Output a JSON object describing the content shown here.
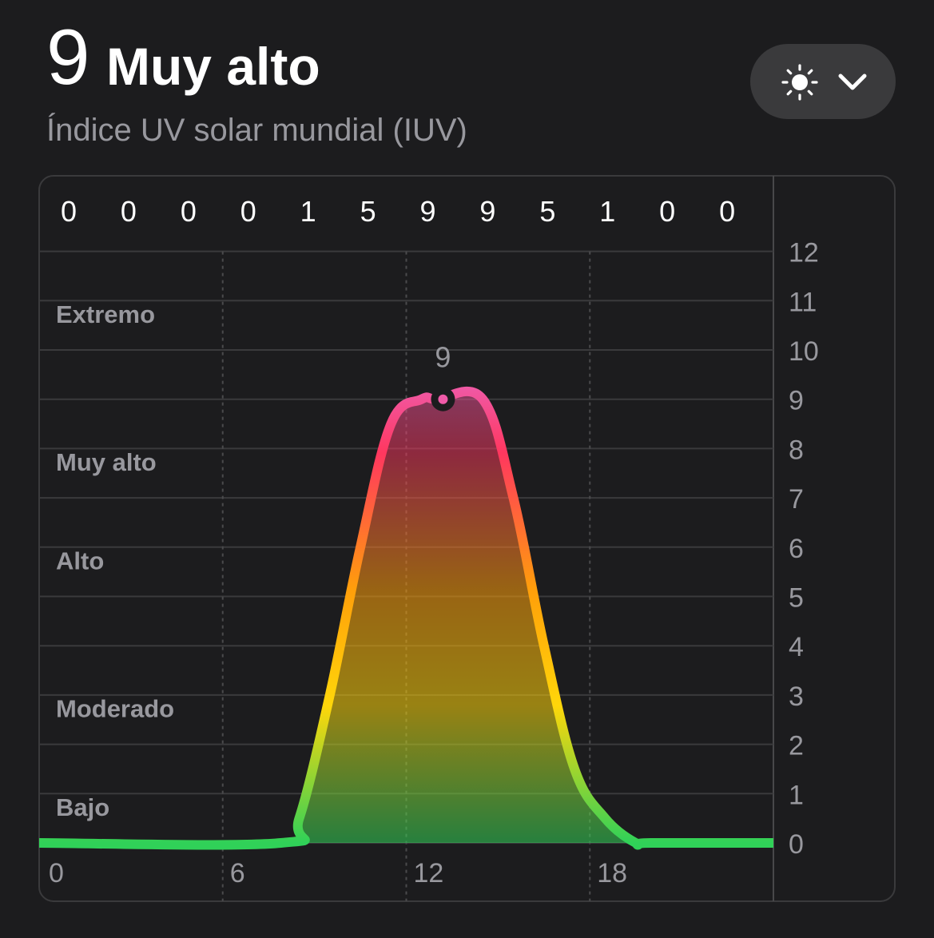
{
  "header": {
    "value": "9",
    "category": "Muy alto",
    "subtitle": "Índice UV solar mundial (IUV)"
  },
  "menu": {
    "icon": "sun-icon",
    "chevron": "chevron-down-icon"
  },
  "colors": {
    "background": "#1c1c1e",
    "low": "#30d158",
    "moderate": "#ffd60a",
    "high": "#ff9f0a",
    "very_high": "#ff375f",
    "extreme": "#ef5aa8"
  },
  "chart_data": {
    "type": "area",
    "title": "",
    "x_ticks": [
      "0",
      "6",
      "12",
      "18"
    ],
    "xlim": [
      0,
      24
    ],
    "y_ticks": [
      "0",
      "1",
      "2",
      "3",
      "4",
      "5",
      "6",
      "7",
      "8",
      "9",
      "10",
      "11",
      "12"
    ],
    "ylim": [
      0,
      12
    ],
    "hourly_top_labels": [
      "0",
      "0",
      "0",
      "0",
      "1",
      "5",
      "9",
      "9",
      "5",
      "1",
      "0",
      "0"
    ],
    "category_bands": [
      {
        "label": "Bajo",
        "from": 0,
        "to": 2
      },
      {
        "label": "Moderado",
        "from": 3,
        "to": 5
      },
      {
        "label": "Alto",
        "from": 6,
        "to": 7
      },
      {
        "label": "Muy alto",
        "from": 8,
        "to": 10
      },
      {
        "label": "Extremo",
        "from": 11,
        "to": 12
      }
    ],
    "series": [
      {
        "x": [
          0,
          7.9,
          8.5,
          9.5,
          10.5,
          11.5,
          12.5,
          13.0,
          14.5,
          15.5,
          16.5,
          17.5,
          18.5,
          19.5,
          20.0,
          24
        ],
        "values": [
          0,
          0,
          0.5,
          3.0,
          6.0,
          8.5,
          9.0,
          9.0,
          9.0,
          7.0,
          4.0,
          1.5,
          0.5,
          0,
          0,
          0
        ]
      }
    ],
    "current_point": {
      "x": 13.2,
      "y": 9,
      "label": "9"
    },
    "grid": true
  }
}
